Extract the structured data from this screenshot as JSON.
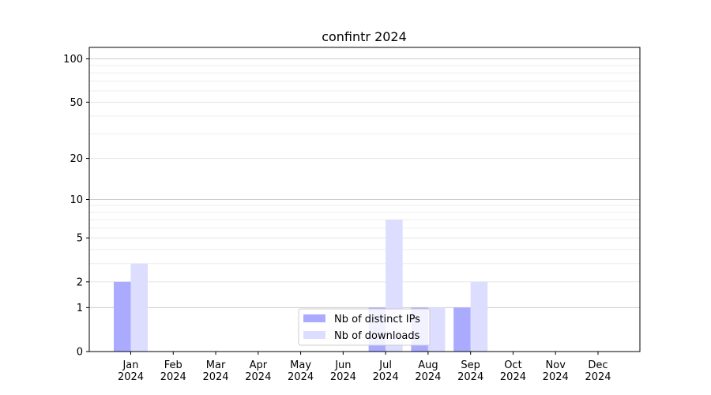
{
  "chart_data": {
    "type": "bar",
    "title": "confintr 2024",
    "xlabel": "",
    "ylabel": "",
    "y_scale": "symlog",
    "ylim": [
      0,
      120
    ],
    "y_ticks": [
      0,
      1,
      2,
      5,
      10,
      20,
      50,
      100
    ],
    "categories": [
      "Jan\n2024",
      "Feb\n2024",
      "Mar\n2024",
      "Apr\n2024",
      "May\n2024",
      "Jun\n2024",
      "Jul\n2024",
      "Aug\n2024",
      "Sep\n2024",
      "Oct\n2024",
      "Nov\n2024",
      "Dec\n2024"
    ],
    "series": [
      {
        "name": "Nb of distinct IPs",
        "color": "#aaaaff",
        "values": [
          2,
          0,
          0,
          0,
          0,
          0,
          1,
          1,
          1,
          0,
          0,
          0
        ]
      },
      {
        "name": "Nb of downloads",
        "color": "#ddddff",
        "values": [
          3,
          0,
          0,
          0,
          0,
          0,
          7,
          1,
          2,
          0,
          0,
          0
        ]
      }
    ],
    "grid": true,
    "legend_position": "bottom-center"
  }
}
